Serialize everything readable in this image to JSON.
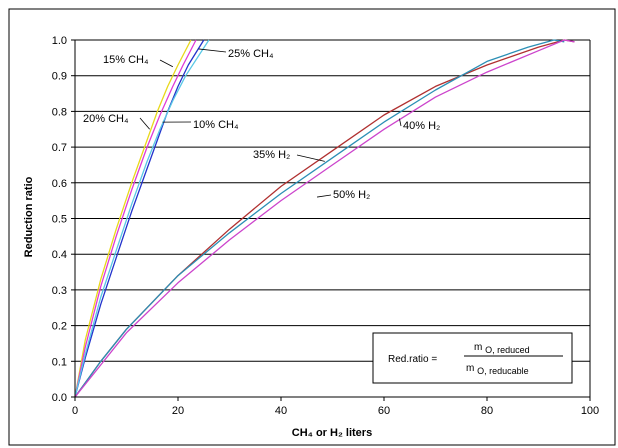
{
  "chart_data": {
    "type": "line",
    "title": "",
    "xlabel": "CH₄ or H₂ liters",
    "ylabel": "Reduction ratio",
    "xlim": [
      0,
      100
    ],
    "ylim": [
      0,
      1.0
    ],
    "x_ticks": [
      0,
      20,
      40,
      60,
      80,
      100
    ],
    "y_ticks": [
      0.0,
      0.1,
      0.2,
      0.3,
      0.4,
      0.5,
      0.6,
      0.7,
      0.8,
      0.9,
      1.0
    ],
    "x_tick_labels": [
      "0",
      "20",
      "40",
      "60",
      "80",
      "100"
    ],
    "y_tick_labels": [
      "0.0",
      "0.1",
      "0.2",
      "0.3",
      "0.4",
      "0.5",
      "0.6",
      "0.7",
      "0.8",
      "0.9",
      "1.0"
    ],
    "grid": "horizontal",
    "series": [
      {
        "label": "15% CH₄",
        "color": "#e8d81a",
        "x": [
          0,
          2,
          5,
          8,
          11,
          14,
          16,
          18,
          20,
          22.5
        ],
        "y": [
          0,
          0.16,
          0.33,
          0.47,
          0.6,
          0.72,
          0.8,
          0.87,
          0.93,
          1.0
        ]
      },
      {
        "label": "20% CH₄",
        "color": "#e03ad6",
        "x": [
          0,
          2,
          5,
          8,
          11,
          14,
          16.5,
          19,
          21,
          23.5
        ],
        "y": [
          0,
          0.14,
          0.31,
          0.45,
          0.58,
          0.7,
          0.79,
          0.87,
          0.93,
          1.0
        ]
      },
      {
        "label": "10% CH₄",
        "color": "#2233cc",
        "x": [
          0,
          2,
          5,
          8,
          11,
          14,
          16,
          18,
          20,
          22,
          25
        ],
        "y": [
          0,
          0.11,
          0.26,
          0.39,
          0.52,
          0.64,
          0.72,
          0.8,
          0.87,
          0.93,
          1.0
        ]
      },
      {
        "label": "25% CH₄",
        "color": "#5ac8e6",
        "x": [
          0,
          2,
          5,
          8,
          11,
          14,
          16.5,
          19,
          21.5,
          26
        ],
        "y": [
          0,
          0.12,
          0.28,
          0.41,
          0.54,
          0.66,
          0.75,
          0.83,
          0.9,
          1.0
        ]
      },
      {
        "label": "35% H₂",
        "color": "#b03030",
        "x": [
          0,
          5,
          10,
          20,
          30,
          40,
          50,
          60,
          70,
          80,
          90,
          95,
          97
        ],
        "y": [
          0,
          0.1,
          0.19,
          0.34,
          0.47,
          0.59,
          0.69,
          0.79,
          0.87,
          0.93,
          0.98,
          1.0,
          0.995
        ]
      },
      {
        "label": "40% H₂",
        "color": "#2b8fb5",
        "x": [
          0,
          5,
          10,
          20,
          30,
          40,
          50,
          60,
          70,
          80,
          88,
          93,
          95
        ],
        "y": [
          0,
          0.1,
          0.19,
          0.34,
          0.46,
          0.57,
          0.67,
          0.77,
          0.86,
          0.94,
          0.98,
          1.0,
          0.995
        ]
      },
      {
        "label": "50% H₂",
        "color": "#cc44cc",
        "x": [
          0,
          5,
          10,
          20,
          30,
          40,
          50,
          60,
          70,
          80,
          90,
          95,
          97
        ],
        "y": [
          0,
          0.09,
          0.18,
          0.32,
          0.44,
          0.55,
          0.65,
          0.75,
          0.84,
          0.91,
          0.97,
          1.0,
          0.995
        ]
      }
    ],
    "annotations": [
      {
        "text": "15% CH₄",
        "series": "15% CH₄",
        "at": [
          19,
          0.925
        ]
      },
      {
        "text": "25% CH₄",
        "series": "25% CH₄",
        "at": [
          24,
          0.975
        ]
      },
      {
        "text": "20% CH₄",
        "series": "20% CH₄",
        "at": [
          14.5,
          0.75
        ]
      },
      {
        "text": "10% CH₄",
        "series": "10% CH₄",
        "at": [
          17,
          0.77
        ]
      },
      {
        "text": "40% H₂",
        "series": "40% H₂",
        "at": [
          63,
          0.78
        ]
      },
      {
        "text": "35% H₂",
        "series": "35% H₂",
        "at": [
          48.5,
          0.66
        ]
      },
      {
        "text": "50% H₂",
        "series": "50% H₂",
        "at": [
          47,
          0.56
        ]
      }
    ],
    "formula": {
      "lhs": "Red.ratio =",
      "numerator": "m",
      "numerator_sub": "O, reduced",
      "denominator": "m",
      "denominator_sub": "O, reducable"
    }
  }
}
